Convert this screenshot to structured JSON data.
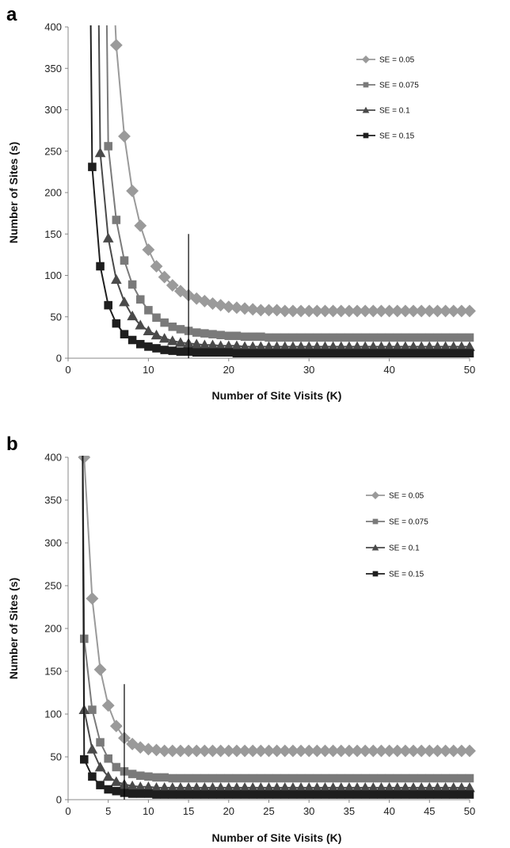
{
  "chart_data": [
    {
      "type": "line",
      "panel": "a",
      "xlabel": "Number of Site Visits (K)",
      "ylabel": "Number of Sites (s)",
      "xlim": [
        0,
        50
      ],
      "ylim": [
        0,
        400
      ],
      "xticks": [
        0,
        10,
        20,
        30,
        40,
        50
      ],
      "yticks": [
        0,
        50,
        100,
        150,
        200,
        250,
        300,
        350,
        400
      ],
      "grid": false,
      "legend": "top-right",
      "reference_line": {
        "x": 15,
        "y_top": 150
      },
      "series": [
        {
          "name": "SE = 0.05",
          "marker": "diamond",
          "color": "#9a9a9a",
          "x": [
            6,
            7,
            8,
            9,
            10,
            11,
            12,
            13,
            14,
            15,
            16,
            17,
            18,
            19,
            20,
            21,
            22,
            23,
            24,
            25,
            26,
            27,
            28,
            29,
            30,
            31,
            32,
            33,
            34,
            35,
            36,
            37,
            38,
            39,
            40,
            41,
            42,
            43,
            44,
            45,
            46,
            47,
            48,
            49,
            50
          ],
          "y": [
            378,
            268,
            202,
            160,
            131,
            111,
            98,
            88,
            81,
            76,
            72,
            69,
            66,
            64,
            62,
            61,
            60,
            59,
            58,
            58,
            58,
            57,
            57,
            57,
            57,
            57,
            57,
            57,
            57,
            57,
            57,
            57,
            57,
            57,
            57,
            57,
            57,
            57,
            57,
            57,
            57,
            57,
            57,
            57,
            57
          ]
        },
        {
          "name": "SE = 0.075",
          "marker": "square",
          "color": "#7a7a7a",
          "x": [
            5,
            6,
            7,
            8,
            9,
            10,
            11,
            12,
            13,
            14,
            15,
            16,
            17,
            18,
            19,
            20,
            21,
            22,
            23,
            24,
            25,
            26,
            27,
            28,
            29,
            30,
            31,
            32,
            33,
            34,
            35,
            36,
            37,
            38,
            39,
            40,
            41,
            42,
            43,
            44,
            45,
            46,
            47,
            48,
            49,
            50
          ],
          "y": [
            256,
            167,
            118,
            89,
            71,
            58,
            49,
            43,
            38,
            35,
            33,
            31,
            30,
            29,
            28,
            27,
            27,
            26,
            26,
            26,
            25,
            25,
            25,
            25,
            25,
            25,
            25,
            25,
            25,
            25,
            25,
            25,
            25,
            25,
            25,
            25,
            25,
            25,
            25,
            25,
            25,
            25,
            25,
            25,
            25,
            25
          ]
        },
        {
          "name": "SE = 0.1",
          "marker": "triangle",
          "color": "#4a4a4a",
          "x": [
            4,
            5,
            6,
            7,
            8,
            9,
            10,
            11,
            12,
            13,
            14,
            15,
            16,
            17,
            18,
            19,
            20,
            21,
            22,
            23,
            24,
            25,
            26,
            27,
            28,
            29,
            30,
            31,
            32,
            33,
            34,
            35,
            36,
            37,
            38,
            39,
            40,
            41,
            42,
            43,
            44,
            45,
            46,
            47,
            48,
            49,
            50
          ],
          "y": [
            248,
            145,
            95,
            68,
            51,
            40,
            33,
            28,
            24,
            21,
            19,
            18,
            17,
            16,
            16,
            15,
            15,
            15,
            14,
            14,
            14,
            14,
            14,
            14,
            14,
            14,
            14,
            14,
            14,
            14,
            14,
            14,
            14,
            14,
            14,
            14,
            14,
            14,
            14,
            14,
            14,
            14,
            14,
            14,
            14,
            14,
            14
          ]
        },
        {
          "name": "SE = 0.15",
          "marker": "square",
          "color": "#1e1e1e",
          "x": [
            3,
            4,
            5,
            6,
            7,
            8,
            9,
            10,
            11,
            12,
            13,
            14,
            15,
            16,
            17,
            18,
            19,
            20,
            21,
            22,
            23,
            24,
            25,
            26,
            27,
            28,
            29,
            30,
            31,
            32,
            33,
            34,
            35,
            36,
            37,
            38,
            39,
            40,
            41,
            42,
            43,
            44,
            45,
            46,
            47,
            48,
            49,
            50
          ],
          "y": [
            231,
            111,
            64,
            42,
            29,
            22,
            17,
            14,
            12,
            10,
            9,
            8,
            8,
            7,
            7,
            7,
            7,
            7,
            6,
            6,
            6,
            6,
            6,
            6,
            6,
            6,
            6,
            6,
            6,
            6,
            6,
            6,
            6,
            6,
            6,
            6,
            6,
            6,
            6,
            6,
            6,
            6,
            6,
            6,
            6,
            6,
            6,
            6
          ]
        }
      ]
    },
    {
      "type": "line",
      "panel": "b",
      "xlabel": "Number of Site Visits (K)",
      "ylabel": "Number of Sites (s)",
      "xlim": [
        0,
        50
      ],
      "ylim": [
        0,
        400
      ],
      "xticks": [
        0,
        5,
        10,
        15,
        20,
        25,
        30,
        35,
        40,
        45,
        50
      ],
      "yticks": [
        0,
        50,
        100,
        150,
        200,
        250,
        300,
        350,
        400
      ],
      "grid": false,
      "legend": "top-right",
      "reference_line": {
        "x": 7,
        "y_top": 135
      },
      "series": [
        {
          "name": "SE = 0.05",
          "marker": "diamond",
          "color": "#9a9a9a",
          "x": [
            2,
            3,
            4,
            5,
            6,
            7,
            8,
            9,
            10,
            11,
            12,
            13,
            14,
            15,
            16,
            17,
            18,
            19,
            20,
            21,
            22,
            23,
            24,
            25,
            26,
            27,
            28,
            29,
            30,
            31,
            32,
            33,
            34,
            35,
            36,
            37,
            38,
            39,
            40,
            41,
            42,
            43,
            44,
            45,
            46,
            47,
            48,
            49,
            50
          ],
          "y": [
            400,
            235,
            152,
            110,
            86,
            72,
            65,
            61,
            59,
            58,
            57,
            57,
            57,
            57,
            57,
            57,
            57,
            57,
            57,
            57,
            57,
            57,
            57,
            57,
            57,
            57,
            57,
            57,
            57,
            57,
            57,
            57,
            57,
            57,
            57,
            57,
            57,
            57,
            57,
            57,
            57,
            57,
            57,
            57,
            57,
            57,
            57,
            57,
            57
          ]
        },
        {
          "name": "SE = 0.075",
          "marker": "square",
          "color": "#7a7a7a",
          "x": [
            2,
            3,
            4,
            5,
            6,
            7,
            8,
            9,
            10,
            11,
            12,
            13,
            14,
            15,
            16,
            17,
            18,
            19,
            20,
            21,
            22,
            23,
            24,
            25,
            26,
            27,
            28,
            29,
            30,
            31,
            32,
            33,
            34,
            35,
            36,
            37,
            38,
            39,
            40,
            41,
            42,
            43,
            44,
            45,
            46,
            47,
            48,
            49,
            50
          ],
          "y": [
            188,
            105,
            67,
            48,
            38,
            33,
            30,
            28,
            27,
            26,
            26,
            25,
            25,
            25,
            25,
            25,
            25,
            25,
            25,
            25,
            25,
            25,
            25,
            25,
            25,
            25,
            25,
            25,
            25,
            25,
            25,
            25,
            25,
            25,
            25,
            25,
            25,
            25,
            25,
            25,
            25,
            25,
            25,
            25,
            25,
            25,
            25,
            25,
            25
          ]
        },
        {
          "name": "SE = 0.1",
          "marker": "triangle",
          "color": "#4a4a4a",
          "x": [
            2,
            3,
            4,
            5,
            6,
            7,
            8,
            9,
            10,
            11,
            12,
            13,
            14,
            15,
            16,
            17,
            18,
            19,
            20,
            21,
            22,
            23,
            24,
            25,
            26,
            27,
            28,
            29,
            30,
            31,
            32,
            33,
            34,
            35,
            36,
            37,
            38,
            39,
            40,
            41,
            42,
            43,
            44,
            45,
            46,
            47,
            48,
            49,
            50
          ],
          "y": [
            105,
            59,
            38,
            27,
            21,
            18,
            16,
            15,
            15,
            14,
            14,
            14,
            14,
            14,
            14,
            14,
            14,
            14,
            14,
            14,
            14,
            14,
            14,
            14,
            14,
            14,
            14,
            14,
            14,
            14,
            14,
            14,
            14,
            14,
            14,
            14,
            14,
            14,
            14,
            14,
            14,
            14,
            14,
            14,
            14,
            14,
            14,
            14,
            14
          ]
        },
        {
          "name": "SE = 0.15",
          "marker": "square",
          "color": "#1e1e1e",
          "x": [
            2,
            3,
            4,
            5,
            6,
            7,
            8,
            9,
            10,
            11,
            12,
            13,
            14,
            15,
            16,
            17,
            18,
            19,
            20,
            21,
            22,
            23,
            24,
            25,
            26,
            27,
            28,
            29,
            30,
            31,
            32,
            33,
            34,
            35,
            36,
            37,
            38,
            39,
            40,
            41,
            42,
            43,
            44,
            45,
            46,
            47,
            48,
            49,
            50
          ],
          "y": [
            47,
            27,
            17,
            12,
            10,
            8,
            7,
            7,
            7,
            6,
            6,
            6,
            6,
            6,
            6,
            6,
            6,
            6,
            6,
            6,
            6,
            6,
            6,
            6,
            6,
            6,
            6,
            6,
            6,
            6,
            6,
            6,
            6,
            6,
            6,
            6,
            6,
            6,
            6,
            6,
            6,
            6,
            6,
            6,
            6,
            6,
            6,
            6,
            6
          ]
        }
      ]
    }
  ]
}
